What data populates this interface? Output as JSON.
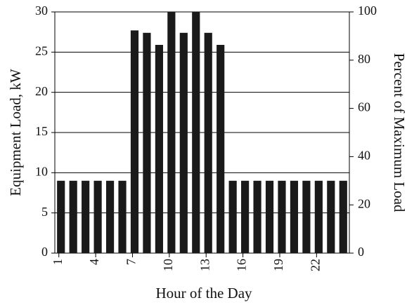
{
  "chart_data": {
    "type": "bar",
    "x_label": "Hour of the Day",
    "y_label": "Equipment Load, kW",
    "y2_label": "Percent of Maximum Load",
    "categories": [
      "1",
      null,
      null,
      "4",
      null,
      null,
      "7",
      null,
      null,
      "10",
      null,
      null,
      "13",
      null,
      null,
      "16",
      null,
      null,
      "19",
      null,
      null,
      "22",
      null,
      null
    ],
    "values": [
      9,
      9,
      9,
      9,
      9,
      9,
      27.7,
      27.4,
      25.9,
      30,
      27.4,
      30,
      27.4,
      25.9,
      9,
      9,
      9,
      9,
      9,
      9,
      9,
      9,
      9,
      9
    ],
    "color": "#1a1a1a",
    "ylim": [
      0,
      30
    ],
    "yticks": [
      0,
      5,
      10,
      15,
      20,
      25,
      30
    ],
    "y2lim": [
      0,
      100
    ],
    "y2ticks": [
      0,
      20,
      40,
      60,
      80,
      100
    ],
    "grid": true
  }
}
